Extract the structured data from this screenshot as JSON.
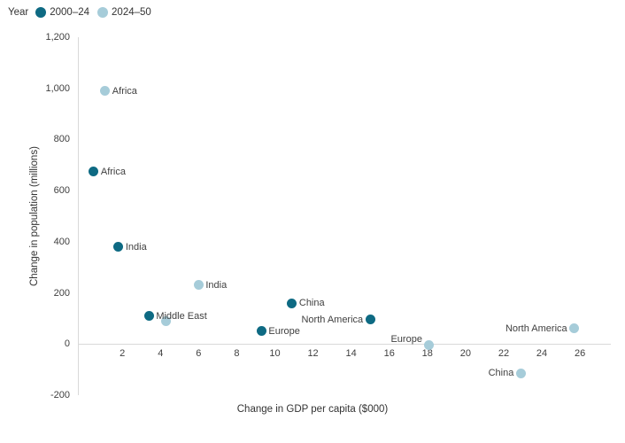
{
  "legend": {
    "title": "Year"
  },
  "chart_data": {
    "type": "scatter",
    "title": "",
    "xlabel": "Change in GDP per capita ($000)",
    "ylabel": "Change in population (millions)",
    "xlim": [
      -0.33,
      27.62
    ],
    "ylim": [
      -200,
      1200
    ],
    "grid": false,
    "legend_position": "top-left",
    "x_ticks": [
      2,
      4,
      6,
      8,
      10,
      12,
      14,
      16,
      18,
      20,
      22,
      24,
      26
    ],
    "y_ticks": [
      {
        "v": -200,
        "label": "-200"
      },
      {
        "v": 0,
        "label": "0"
      },
      {
        "v": 200,
        "label": "200"
      },
      {
        "v": 400,
        "label": "400"
      },
      {
        "v": 600,
        "label": "600"
      },
      {
        "v": 800,
        "label": "800"
      },
      {
        "v": 1000,
        "label": "1,000"
      },
      {
        "v": 1200,
        "label": "1,200"
      }
    ],
    "series": [
      {
        "name": "2000–24",
        "color": "#0e6a83",
        "points": [
          {
            "region": "Africa",
            "x": 0.5,
            "y": 675,
            "label_side": "right"
          },
          {
            "region": "India",
            "x": 1.8,
            "y": 380,
            "label_side": "right"
          },
          {
            "region": "Middle East",
            "x": 3.4,
            "y": 110,
            "label_side": "right"
          },
          {
            "region": "Europe",
            "x": 9.3,
            "y": 50,
            "label_side": "right"
          },
          {
            "region": "China",
            "x": 10.9,
            "y": 160,
            "label_side": "right"
          },
          {
            "region": "North America",
            "x": 15.0,
            "y": 95,
            "label_side": "left"
          }
        ]
      },
      {
        "name": "2024–50",
        "color": "#a6ccd9",
        "points": [
          {
            "region": "Africa",
            "x": 1.1,
            "y": 990,
            "label_side": "right"
          },
          {
            "region": "India",
            "x": 6.0,
            "y": 230,
            "label_side": "right"
          },
          {
            "region": "Middle East",
            "x": 4.3,
            "y": 90,
            "label_side": "none"
          },
          {
            "region": "Europe",
            "x": 18.1,
            "y": -5,
            "label_side": "left",
            "label_dy": -7
          },
          {
            "region": "China",
            "x": 22.9,
            "y": -115,
            "label_side": "left"
          },
          {
            "region": "North America",
            "x": 25.7,
            "y": 60,
            "label_side": "left"
          }
        ]
      }
    ]
  }
}
